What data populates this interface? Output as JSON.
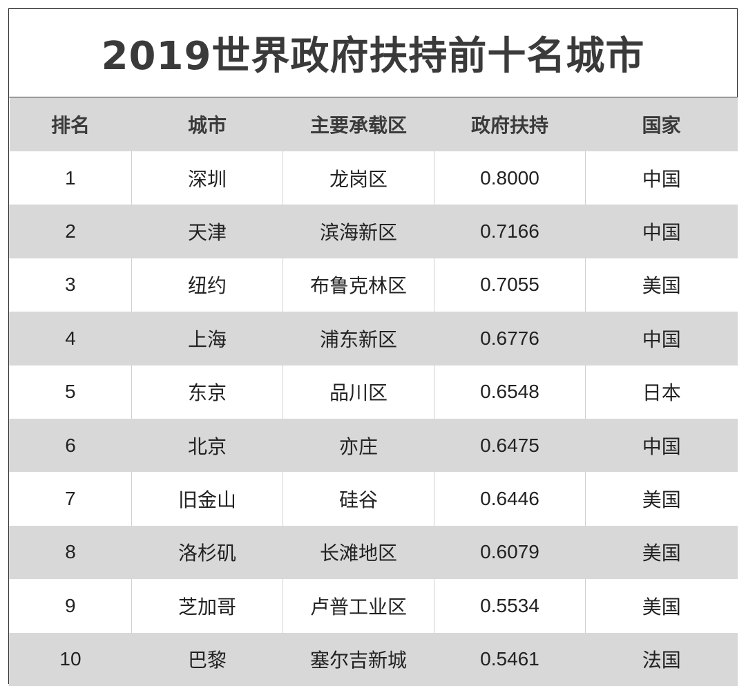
{
  "title": "2019世界政府扶持前十名城市",
  "table": {
    "headers": [
      "排名",
      "城市",
      "主要承载区",
      "政府扶持",
      "国家"
    ],
    "rows": [
      [
        "1",
        "深圳",
        "龙岗区",
        "0.8000",
        "中国"
      ],
      [
        "2",
        "天津",
        "滨海新区",
        "0.7166",
        "中国"
      ],
      [
        "3",
        "纽约",
        "布鲁克林区",
        "0.7055",
        "美国"
      ],
      [
        "4",
        "上海",
        "浦东新区",
        "0.6776",
        "中国"
      ],
      [
        "5",
        "东京",
        "品川区",
        "0.6548",
        "日本"
      ],
      [
        "6",
        "北京",
        "亦庄",
        "0.6475",
        "中国"
      ],
      [
        "7",
        "旧金山",
        "硅谷",
        "0.6446",
        "美国"
      ],
      [
        "8",
        "洛杉矶",
        "长滩地区",
        "0.6079",
        "美国"
      ],
      [
        "9",
        "芝加哥",
        "卢普工业区",
        "0.5534",
        "美国"
      ],
      [
        "10",
        "巴黎",
        "塞尔吉新城",
        "0.5461",
        "法国"
      ]
    ]
  },
  "colors": {
    "stripe": "#d9d8d8",
    "title_text": "#3a3a3a",
    "border": "#333333"
  }
}
